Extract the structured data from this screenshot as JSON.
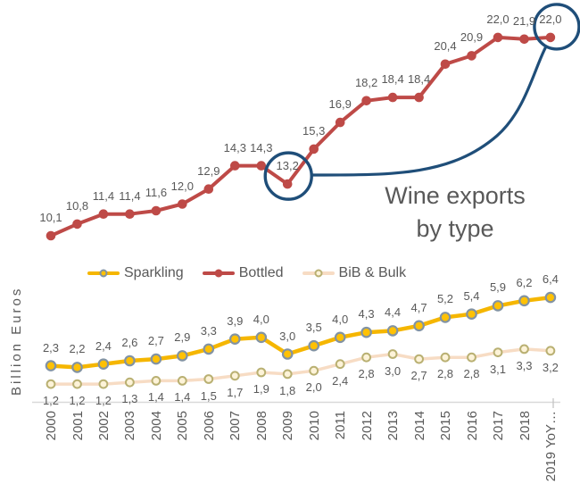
{
  "colors": {
    "text": "#595959",
    "axis_line": "#d9d9d9",
    "annotation": "#1f4e79",
    "background": "#ffffff"
  },
  "y_axis_label": "Billion Euros",
  "annotation_title": {
    "line1": "Wine exports",
    "line2": "by type"
  },
  "chart_data": {
    "type": "line",
    "title": "Wine exports by type",
    "xlabel": "",
    "ylabel": "Billion Euros",
    "ylim": [
      0,
      24
    ],
    "grid": false,
    "legend_position": "middle-left",
    "decimal_separator": ",",
    "categories": [
      "2000",
      "2001",
      "2002",
      "2003",
      "2004",
      "2005",
      "2006",
      "2007",
      "2008",
      "2009",
      "2010",
      "2011",
      "2012",
      "2013",
      "2014",
      "2015",
      "2016",
      "2017",
      "2018",
      "2019 YoY…"
    ],
    "series": [
      {
        "name": "Sparkling",
        "color": "#f5b600",
        "marker_fill": "#ffc104",
        "marker_stroke": "#8293a3",
        "label_position": "above",
        "values": [
          2.3,
          2.2,
          2.4,
          2.6,
          2.7,
          2.9,
          3.3,
          3.9,
          4.0,
          3.0,
          3.5,
          4.0,
          4.3,
          4.4,
          4.7,
          5.2,
          5.4,
          5.9,
          6.2,
          6.4
        ]
      },
      {
        "name": "Bottled",
        "color": "#be4a47",
        "marker_fill": "#be4a47",
        "marker_stroke": "#b04441",
        "label_position": "above",
        "values": [
          10.1,
          10.8,
          11.4,
          11.4,
          11.6,
          12.0,
          12.9,
          14.3,
          14.3,
          13.2,
          15.3,
          16.9,
          18.2,
          18.4,
          18.4,
          20.4,
          20.9,
          22.0,
          21.9,
          22.0
        ]
      },
      {
        "name": "BiB & Bulk",
        "color": "#f7dcc4",
        "marker_fill": "#fdf3d8",
        "marker_stroke": "#b9b072",
        "label_position": "below",
        "values": [
          1.2,
          1.2,
          1.2,
          1.3,
          1.4,
          1.4,
          1.5,
          1.7,
          1.9,
          1.8,
          2.0,
          2.4,
          2.8,
          3.0,
          2.7,
          2.8,
          2.8,
          3.1,
          3.3,
          3.2
        ]
      }
    ],
    "annotations": {
      "color": "#1f4e79",
      "circled_points": [
        {
          "series": "Bottled",
          "category": "2009",
          "value": 13.2
        },
        {
          "series": "Bottled",
          "category": "2019 YoY…",
          "value": 22.0
        }
      ]
    }
  }
}
